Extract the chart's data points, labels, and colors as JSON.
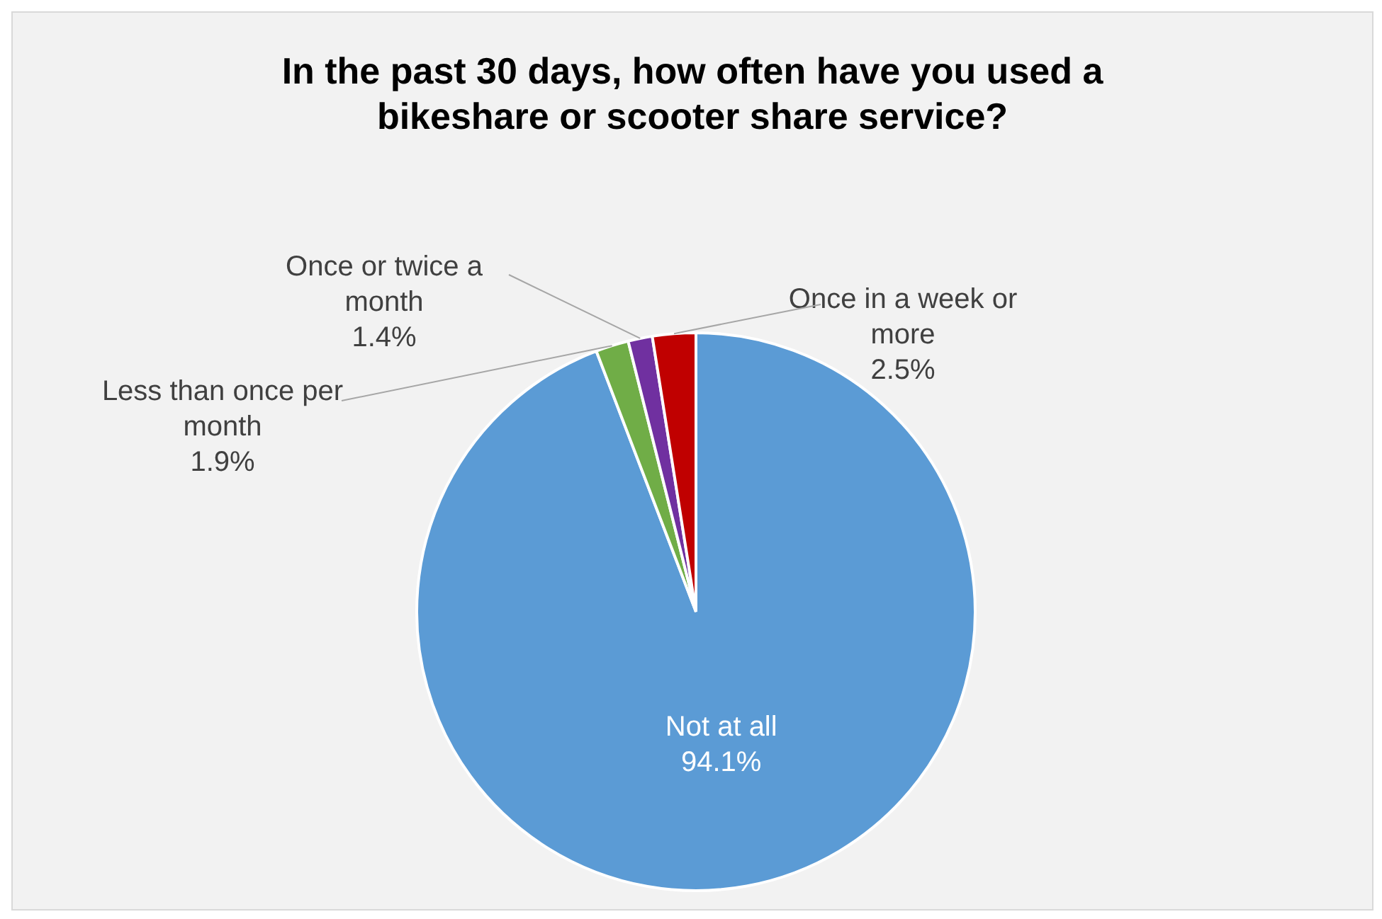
{
  "chart_data": {
    "type": "pie",
    "title": "In the past 30 days, how often have you used a bikeshare or scooter share service?",
    "categories": [
      "Not at all",
      "Less than once per month",
      "Once or twice a month",
      "Once in a week or more"
    ],
    "values": [
      94.1,
      1.9,
      1.4,
      2.5
    ],
    "colors": [
      "#5b9bd5",
      "#70ad47",
      "#7030a0",
      "#c00000"
    ],
    "value_labels": [
      "94.1%",
      "1.9%",
      "1.4%",
      "2.5%"
    ],
    "legend": false
  }
}
